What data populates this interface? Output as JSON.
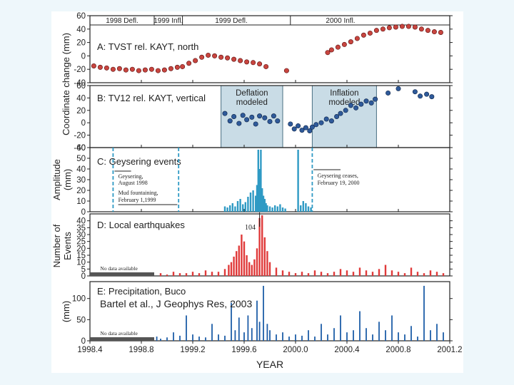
{
  "citation": "Bartel et al., J Geophys Res, 2003",
  "colors": {
    "slide_background": "#eef7fb",
    "figure_background": "#ffffff",
    "gps_points_red": "#c8453f",
    "gps_points_blue": "#2f5a9a",
    "model_window": "#c9dce6",
    "geyser_bars": "#2f9ac4",
    "quake_bars": "#e03a3a",
    "precip_bars": "#1f5ea8",
    "no_data_bar": "#555555"
  },
  "chart_data": [
    {
      "id": "A",
      "type": "scatter",
      "title": "A:  TVST rel. KAYT, north",
      "ylabel": "Coordinate change (mm)",
      "ylim": [
        -40,
        60
      ],
      "yticks": [
        "60",
        "40",
        "20",
        "0",
        "-20",
        "-40"
      ],
      "phase_labels": [
        "1998 Defl.",
        "1999 Infl.",
        "1999 Defl.",
        "2000 Infl."
      ],
      "series": [
        {
          "color": "#c8453f",
          "points": [
            [
              1998.43,
              -15
            ],
            [
              1998.48,
              -17
            ],
            [
              1998.53,
              -18
            ],
            [
              1998.58,
              -20
            ],
            [
              1998.63,
              -19
            ],
            [
              1998.68,
              -21
            ],
            [
              1998.73,
              -20
            ],
            [
              1998.78,
              -22
            ],
            [
              1998.83,
              -21
            ],
            [
              1998.88,
              -20
            ],
            [
              1998.93,
              -22
            ],
            [
              1998.98,
              -21
            ],
            [
              1999.03,
              -19
            ],
            [
              1999.08,
              -17
            ],
            [
              1999.12,
              -16
            ],
            [
              1999.17,
              -11
            ],
            [
              1999.22,
              -7
            ],
            [
              1999.27,
              -2
            ],
            [
              1999.32,
              1
            ],
            [
              1999.37,
              0
            ],
            [
              1999.42,
              -2
            ],
            [
              1999.47,
              -3
            ],
            [
              1999.52,
              -5
            ],
            [
              1999.57,
              -7
            ],
            [
              1999.62,
              -9
            ],
            [
              1999.67,
              -10
            ],
            [
              1999.72,
              -12
            ],
            [
              1999.77,
              -16
            ],
            [
              1999.93,
              -22
            ],
            [
              2000.25,
              5
            ],
            [
              2000.28,
              9
            ],
            [
              2000.33,
              13
            ],
            [
              2000.38,
              17
            ],
            [
              2000.43,
              21
            ],
            [
              2000.48,
              26
            ],
            [
              2000.53,
              31
            ],
            [
              2000.58,
              34
            ],
            [
              2000.63,
              38
            ],
            [
              2000.68,
              40
            ],
            [
              2000.73,
              42
            ],
            [
              2000.78,
              43
            ],
            [
              2000.83,
              44
            ],
            [
              2000.88,
              44
            ],
            [
              2000.93,
              43
            ],
            [
              2000.98,
              40
            ],
            [
              2001.03,
              38
            ],
            [
              2001.08,
              36
            ],
            [
              2001.13,
              35
            ]
          ]
        }
      ]
    },
    {
      "id": "B",
      "type": "scatter",
      "title": "B:  TV12 rel. KAYT, vertical",
      "ylim": [
        -40,
        60
      ],
      "yticks": [
        "60",
        "40",
        "20",
        "0",
        "-20",
        "-40"
      ],
      "shaded_windows": [
        {
          "label": "Deflation modeled",
          "x": [
            1999.42,
            1999.9
          ]
        },
        {
          "label": "Inflation modeled",
          "x": [
            2000.13,
            2000.63
          ]
        }
      ],
      "series": [
        {
          "color": "#2f5a9a",
          "points": [
            [
              1999.45,
              15
            ],
            [
              1999.49,
              3
            ],
            [
              1999.52,
              10
            ],
            [
              1999.56,
              -1
            ],
            [
              1999.59,
              12
            ],
            [
              1999.62,
              5
            ],
            [
              1999.66,
              9
            ],
            [
              1999.69,
              -2
            ],
            [
              1999.72,
              11
            ],
            [
              1999.76,
              8
            ],
            [
              1999.8,
              2
            ],
            [
              1999.83,
              11
            ],
            [
              1999.86,
              3
            ],
            [
              1999.96,
              -2
            ],
            [
              1999.99,
              -10
            ],
            [
              2000.02,
              -5
            ],
            [
              2000.05,
              -12
            ],
            [
              2000.08,
              -8
            ],
            [
              2000.11,
              -13
            ],
            [
              2000.13,
              -7
            ],
            [
              2000.16,
              -3
            ],
            [
              2000.2,
              0
            ],
            [
              2000.24,
              6
            ],
            [
              2000.28,
              3
            ],
            [
              2000.32,
              10
            ],
            [
              2000.35,
              15
            ],
            [
              2000.39,
              20
            ],
            [
              2000.43,
              28
            ],
            [
              2000.47,
              24
            ],
            [
              2000.51,
              30
            ],
            [
              2000.55,
              35
            ],
            [
              2000.59,
              32
            ],
            [
              2000.62,
              38
            ],
            [
              2000.72,
              48
            ],
            [
              2000.8,
              55
            ],
            [
              2000.93,
              50
            ],
            [
              2000.97,
              43
            ],
            [
              2001.02,
              46
            ],
            [
              2001.06,
              42
            ]
          ]
        }
      ]
    },
    {
      "id": "C",
      "type": "bar",
      "title": "C:  Geysering events",
      "ylabel": "Amplitude (mm)",
      "ylim": [
        0,
        60
      ],
      "yticks": [
        "60",
        "50",
        "40",
        "30",
        "20",
        "10",
        "0"
      ],
      "annotations": [
        {
          "text": "Geysering, August 1998"
        },
        {
          "text": "Mud fountaining, February 1,1999"
        },
        {
          "text": "Geysering ceases, February 19, 2000"
        }
      ],
      "event_dates": [
        1998.58,
        1999.09,
        2000.13
      ],
      "series": [
        {
          "color": "#2f9ac4",
          "x": [
            1999.45,
            1999.47,
            1999.49,
            1999.51,
            1999.53,
            1999.55,
            1999.57,
            1999.59,
            1999.61,
            1999.63,
            1999.65,
            1999.67,
            1999.69,
            1999.7,
            1999.71,
            1999.72,
            1999.73,
            1999.74,
            1999.75,
            1999.76,
            1999.77,
            1999.78,
            1999.8,
            1999.82,
            1999.84,
            1999.86,
            1999.88,
            1999.9,
            1999.92,
            2000.02,
            2000.04,
            2000.06,
            2000.08,
            2000.1,
            2000.12
          ],
          "values": [
            5,
            4,
            6,
            8,
            5,
            10,
            12,
            7,
            9,
            14,
            18,
            20,
            15,
            25,
            58,
            40,
            58,
            22,
            15,
            12,
            8,
            6,
            5,
            4,
            6,
            5,
            7,
            4,
            3,
            58,
            6,
            10,
            8,
            5,
            4
          ]
        }
      ]
    },
    {
      "id": "D",
      "type": "bar",
      "title": "D:  Local earthquakes",
      "ylabel": "Number of Events",
      "ylim": [
        0,
        45
      ],
      "yticks": [
        "40",
        "35",
        "30",
        "25",
        "20",
        "15",
        "10",
        "5",
        "0"
      ],
      "annotations": [
        {
          "text": "104"
        },
        {
          "text": "No data available"
        }
      ],
      "no_data_x": [
        1998.4,
        1998.9
      ],
      "series": [
        {
          "color": "#e03a3a",
          "x": [
            1998.95,
            1999.0,
            1999.05,
            1999.1,
            1999.15,
            1999.2,
            1999.25,
            1999.3,
            1999.35,
            1999.4,
            1999.45,
            1999.48,
            1999.5,
            1999.52,
            1999.54,
            1999.56,
            1999.58,
            1999.6,
            1999.62,
            1999.64,
            1999.66,
            1999.68,
            1999.7,
            1999.72,
            1999.74,
            1999.76,
            1999.78,
            1999.8,
            1999.85,
            1999.9,
            1999.95,
            2000.0,
            2000.05,
            2000.1,
            2000.15,
            2000.2,
            2000.25,
            2000.3,
            2000.35,
            2000.4,
            2000.45,
            2000.5,
            2000.55,
            2000.6,
            2000.65,
            2000.7,
            2000.75,
            2000.8,
            2000.85,
            2000.9,
            2000.95,
            2001.0,
            2001.05,
            2001.1,
            2001.15
          ],
          "values": [
            2,
            1,
            3,
            2,
            2,
            3,
            2,
            4,
            3,
            3,
            5,
            8,
            10,
            14,
            18,
            22,
            30,
            25,
            15,
            10,
            8,
            12,
            20,
            42,
            44,
            28,
            18,
            10,
            6,
            4,
            3,
            2,
            3,
            2,
            4,
            3,
            2,
            3,
            5,
            4,
            3,
            6,
            4,
            3,
            5,
            8,
            4,
            3,
            2,
            6,
            3,
            2,
            4,
            3,
            2
          ]
        }
      ]
    },
    {
      "id": "E",
      "type": "bar",
      "title": "E:  Precipitation, Buco",
      "ylabel": "(mm)",
      "ylim": [
        0,
        140
      ],
      "yticks": [
        "100",
        "50",
        "0"
      ],
      "annotations": [
        {
          "text": "No data available"
        }
      ],
      "no_data_x": [
        1998.4,
        1998.9
      ],
      "xlabel": "YEAR",
      "xlim": [
        1998.4,
        2001.2
      ],
      "xticks": [
        "1998.4",
        "1998.8",
        "1999.2",
        "1999.6",
        "2000.0",
        "2000.4",
        "2000.8",
        "2001.2"
      ],
      "series": [
        {
          "color": "#1f5ea8",
          "x": [
            1998.92,
            1998.95,
            1999.0,
            1999.05,
            1999.1,
            1999.15,
            1999.2,
            1999.25,
            1999.3,
            1999.35,
            1999.4,
            1999.45,
            1999.5,
            1999.53,
            1999.56,
            1999.6,
            1999.63,
            1999.66,
            1999.7,
            1999.72,
            1999.75,
            1999.78,
            1999.8,
            1999.85,
            1999.9,
            1999.95,
            2000.0,
            2000.05,
            2000.1,
            2000.15,
            2000.2,
            2000.25,
            2000.3,
            2000.35,
            2000.4,
            2000.45,
            2000.5,
            2000.55,
            2000.6,
            2000.65,
            2000.7,
            2000.75,
            2000.8,
            2000.85,
            2000.9,
            2000.95,
            2001.0,
            2001.05,
            2001.1,
            2001.15
          ],
          "values": [
            10,
            5,
            8,
            20,
            12,
            60,
            15,
            10,
            8,
            40,
            15,
            12,
            90,
            25,
            55,
            20,
            60,
            30,
            95,
            45,
            130,
            40,
            25,
            15,
            20,
            10,
            15,
            12,
            25,
            10,
            40,
            15,
            30,
            60,
            20,
            25,
            70,
            30,
            15,
            45,
            25,
            60,
            20,
            15,
            35,
            10,
            130,
            25,
            40,
            20
          ]
        }
      ]
    }
  ]
}
